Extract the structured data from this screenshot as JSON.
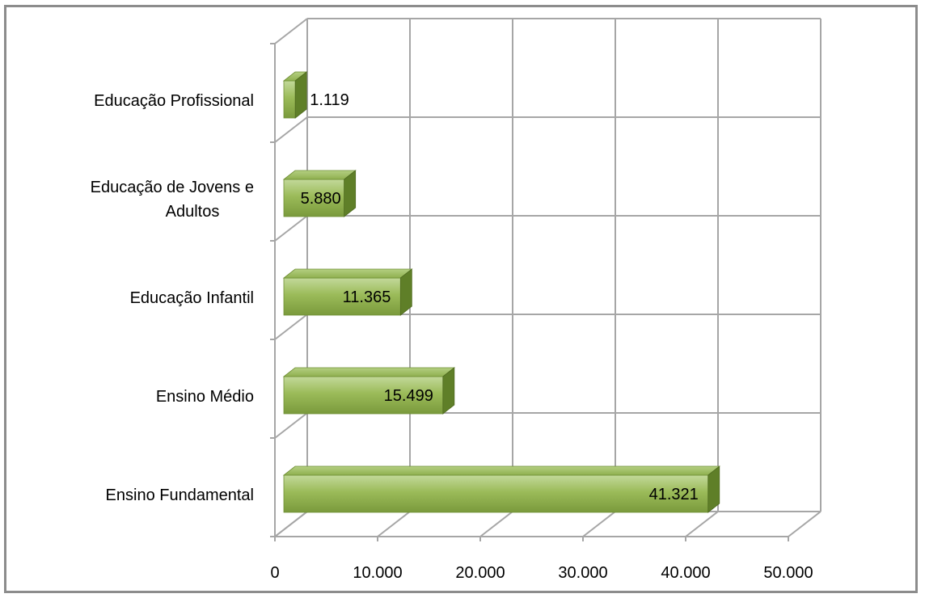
{
  "chart_data": {
    "type": "bar",
    "orientation": "horizontal",
    "style": "3d",
    "categories": [
      "Ensino Fundamental",
      "Ensino Médio",
      "Educação Infantil",
      "Educação de Jovens e Adultos",
      "Educação Profissional"
    ],
    "category_lines": [
      [
        "Ensino Fundamental"
      ],
      [
        "Ensino Médio"
      ],
      [
        "Educação Infantil"
      ],
      [
        "Educação de Jovens e",
        "Adultos"
      ],
      [
        "Educação Profissional"
      ]
    ],
    "values": [
      41321,
      15499,
      11365,
      5880,
      1119
    ],
    "data_labels": [
      "41.321",
      "15.499",
      "11.365",
      "5.880",
      "1.119"
    ],
    "x_ticks": [
      0,
      10000,
      20000,
      30000,
      40000,
      50000
    ],
    "x_tick_labels": [
      "0",
      "10.000",
      "20.000",
      "30.000",
      "40.000",
      "50.000"
    ],
    "xlim": [
      0,
      50000
    ],
    "grid": true,
    "legend": "none",
    "bar_color": "#9bbb59",
    "title": "",
    "xlabel": "",
    "ylabel": ""
  }
}
